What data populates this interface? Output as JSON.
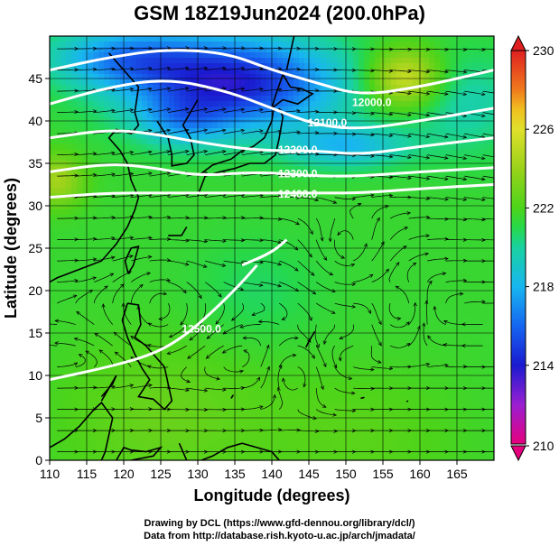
{
  "title": "GSM 18Z19Jun2024 (200.0hPa)",
  "map": {
    "x_axis": {
      "label": "Longitude (degrees)",
      "range": [
        110,
        170
      ],
      "ticks": [
        110,
        115,
        120,
        125,
        130,
        135,
        140,
        145,
        150,
        155,
        160,
        165
      ]
    },
    "y_axis": {
      "label": "Latitude (degrees)",
      "range": [
        0,
        50
      ],
      "ticks": [
        0,
        5,
        10,
        15,
        20,
        25,
        30,
        35,
        40,
        45
      ]
    },
    "grid": true,
    "contour_color": "#ffffff",
    "contours": [
      {
        "label": "12000.0",
        "label_at": [
          153.5,
          42.2
        ],
        "points": [
          [
            110,
            46
          ],
          [
            118,
            47.5
          ],
          [
            126,
            48.5
          ],
          [
            134,
            48
          ],
          [
            140,
            46
          ],
          [
            146,
            44.5
          ],
          [
            152,
            43
          ],
          [
            160,
            44
          ],
          [
            170,
            46
          ]
        ]
      },
      {
        "label": "12100.0",
        "label_at": [
          147.5,
          39.8
        ],
        "points": [
          [
            110,
            42
          ],
          [
            118,
            44
          ],
          [
            126,
            45
          ],
          [
            134,
            43.5
          ],
          [
            140,
            41.5
          ],
          [
            146,
            39.5
          ],
          [
            152,
            39
          ],
          [
            160,
            40
          ],
          [
            170,
            41.5
          ]
        ]
      },
      {
        "label": "12200.0",
        "label_at": [
          143.5,
          36.6
        ],
        "points": [
          [
            110,
            38
          ],
          [
            118,
            39
          ],
          [
            124,
            38.5
          ],
          [
            130,
            37.5
          ],
          [
            138,
            36.5
          ],
          [
            146,
            36.5
          ],
          [
            152,
            36
          ],
          [
            160,
            37
          ],
          [
            170,
            38
          ]
        ]
      },
      {
        "label": "12300.0",
        "label_at": [
          143.5,
          33.8
        ],
        "points": [
          [
            110,
            34
          ],
          [
            118,
            35
          ],
          [
            124,
            34.5
          ],
          [
            130,
            33.5
          ],
          [
            138,
            34
          ],
          [
            146,
            33.5
          ],
          [
            152,
            33.5
          ],
          [
            160,
            34
          ],
          [
            170,
            34.5
          ]
        ]
      },
      {
        "label": "12400.0",
        "label_at": [
          143.5,
          31.4
        ],
        "points": [
          [
            110,
            31
          ],
          [
            118,
            31.5
          ],
          [
            124,
            31.5
          ],
          [
            130,
            31.5
          ],
          [
            138,
            31.5
          ],
          [
            146,
            31.5
          ],
          [
            152,
            31.5
          ],
          [
            160,
            32
          ],
          [
            170,
            32.5
          ]
        ]
      },
      {
        "label": "12500.0",
        "label_at": [
          130.5,
          15.5
        ],
        "points": [
          [
            110,
            9.5
          ],
          [
            118,
            11
          ],
          [
            124,
            12.5
          ],
          [
            128,
            14.5
          ],
          [
            132,
            17.5
          ],
          [
            136,
            21
          ],
          [
            138,
            23
          ]
        ]
      },
      {
        "label": "",
        "label_at": null,
        "points": [
          [
            136,
            23
          ],
          [
            140,
            24.5
          ],
          [
            142,
            26
          ]
        ]
      }
    ],
    "colorbar": {
      "min": 210,
      "max": 230,
      "tick_labels": [
        210,
        214,
        218,
        222,
        226,
        230
      ],
      "color_stops": [
        {
          "value": 210,
          "color": "#e6007e"
        },
        {
          "value": 212,
          "color": "#9a1fd1"
        },
        {
          "value": 214,
          "color": "#1a1ad0"
        },
        {
          "value": 216,
          "color": "#1566f0"
        },
        {
          "value": 218,
          "color": "#18b6f0"
        },
        {
          "value": 220,
          "color": "#19d2a0"
        },
        {
          "value": 221,
          "color": "#26d84a"
        },
        {
          "value": 222,
          "color": "#4cd41a"
        },
        {
          "value": 224,
          "color": "#9ad21a"
        },
        {
          "value": 226,
          "color": "#e0e02a"
        },
        {
          "value": 227,
          "color": "#f0c020"
        },
        {
          "value": 228,
          "color": "#f07a1e"
        },
        {
          "value": 230,
          "color": "#e02020"
        }
      ]
    }
  },
  "credits": [
    "Drawing by DCL (https://www.gfd-dennou.org/library/dcl/)",
    "Data from http://database.rish.kyoto-u.ac.jp/arch/jmadata/"
  ]
}
